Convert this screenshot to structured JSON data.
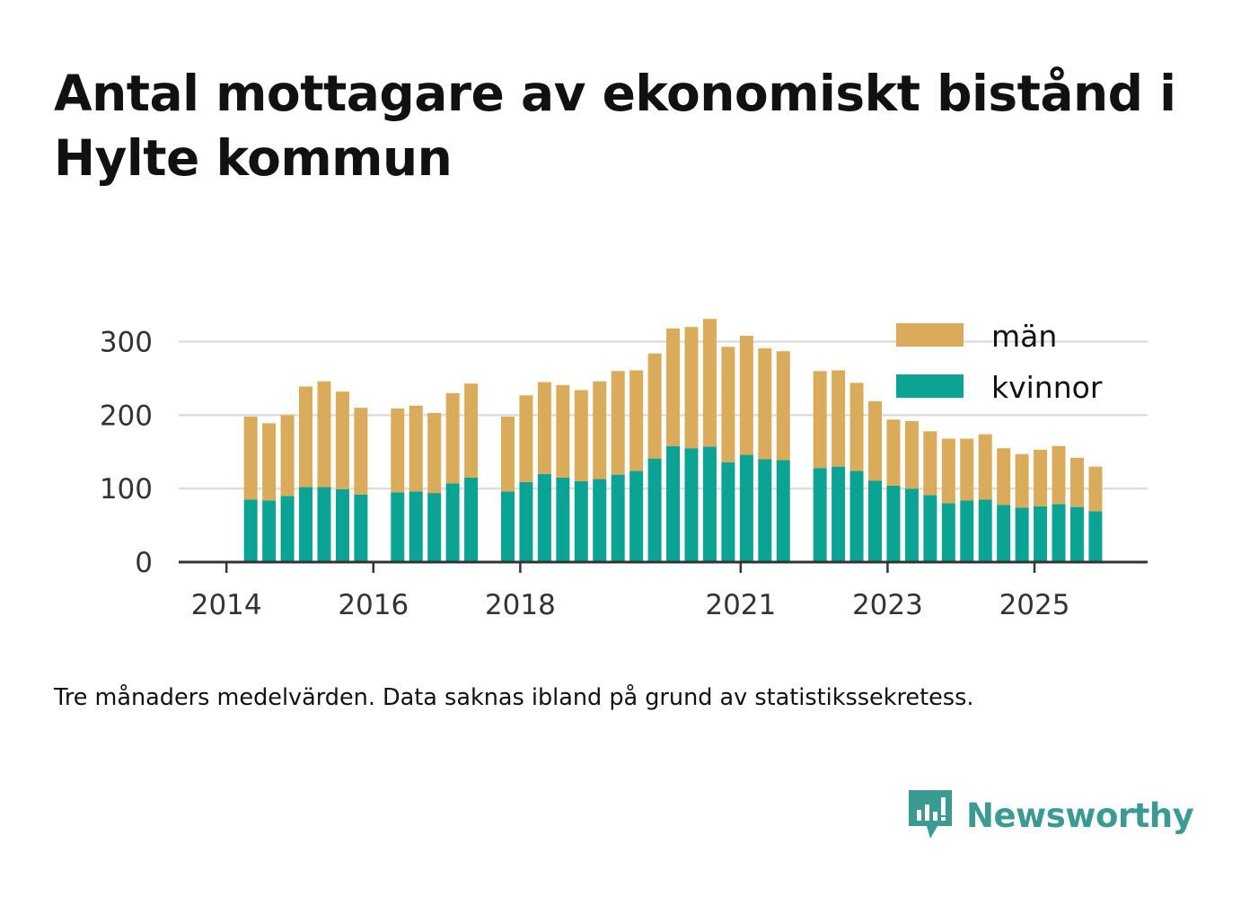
{
  "title": "Antal mottagare av ekonomiskt bistånd i Hylte kommun",
  "caption": "Tre månaders medelvärden. Data saknas ibland på grund av statistikssekretess.",
  "brand": {
    "name": "Newsworthy",
    "icon": "newsworthy-bar-chart-logo-icon",
    "color": "#3b9a92"
  },
  "colors": {
    "man": "#d9ab5b",
    "kvinnor": "#0ba393",
    "grid": "#dddddd",
    "axis": "#333333"
  },
  "chart_data": {
    "type": "bar",
    "stacked": true,
    "title": "Antal mottagare av ekonomiskt bistånd i Hylte kommun",
    "xlabel": "",
    "ylabel": "",
    "ylim": [
      0,
      330
    ],
    "yticks": [
      0,
      100,
      200,
      300
    ],
    "xticks": [
      {
        "label": "2014",
        "t": 2014.0
      },
      {
        "label": "2016",
        "t": 2016.0
      },
      {
        "label": "2018",
        "t": 2018.0
      },
      {
        "label": "2021",
        "t": 2021.0
      },
      {
        "label": "2023",
        "t": 2023.0
      },
      {
        "label": "2025",
        "t": 2025.0
      }
    ],
    "xlim": [
      2013.35,
      2026.54
    ],
    "legend": {
      "position": "top-right",
      "entries": [
        "män",
        "kvinnor"
      ]
    },
    "grid": true,
    "periods": [
      {
        "t": 2014.33,
        "kvinnor": 85,
        "man": 113
      },
      {
        "t": 2014.58,
        "kvinnor": 84,
        "man": 105
      },
      {
        "t": 2014.83,
        "kvinnor": 90,
        "man": 110
      },
      {
        "t": 2015.08,
        "kvinnor": 102,
        "man": 137
      },
      {
        "t": 2015.33,
        "kvinnor": 102,
        "man": 144
      },
      {
        "t": 2015.58,
        "kvinnor": 99,
        "man": 133
      },
      {
        "t": 2015.83,
        "kvinnor": 92,
        "man": 118
      },
      {
        "t": 2016.33,
        "kvinnor": 95,
        "man": 114
      },
      {
        "t": 2016.58,
        "kvinnor": 96,
        "man": 117
      },
      {
        "t": 2016.83,
        "kvinnor": 94,
        "man": 109
      },
      {
        "t": 2017.08,
        "kvinnor": 107,
        "man": 123
      },
      {
        "t": 2017.33,
        "kvinnor": 115,
        "man": 128
      },
      {
        "t": 2017.83,
        "kvinnor": 96,
        "man": 102
      },
      {
        "t": 2018.08,
        "kvinnor": 109,
        "man": 118
      },
      {
        "t": 2018.33,
        "kvinnor": 120,
        "man": 125
      },
      {
        "t": 2018.58,
        "kvinnor": 115,
        "man": 126
      },
      {
        "t": 2018.83,
        "kvinnor": 110,
        "man": 124
      },
      {
        "t": 2019.08,
        "kvinnor": 113,
        "man": 133
      },
      {
        "t": 2019.33,
        "kvinnor": 119,
        "man": 141
      },
      {
        "t": 2019.58,
        "kvinnor": 124,
        "man": 137
      },
      {
        "t": 2019.83,
        "kvinnor": 141,
        "man": 143
      },
      {
        "t": 2020.08,
        "kvinnor": 158,
        "man": 160
      },
      {
        "t": 2020.33,
        "kvinnor": 155,
        "man": 165
      },
      {
        "t": 2020.58,
        "kvinnor": 157,
        "man": 174
      },
      {
        "t": 2020.83,
        "kvinnor": 136,
        "man": 157
      },
      {
        "t": 2021.08,
        "kvinnor": 146,
        "man": 162
      },
      {
        "t": 2021.33,
        "kvinnor": 140,
        "man": 151
      },
      {
        "t": 2021.58,
        "kvinnor": 139,
        "man": 148
      },
      {
        "t": 2022.08,
        "kvinnor": 128,
        "man": 132
      },
      {
        "t": 2022.33,
        "kvinnor": 130,
        "man": 131
      },
      {
        "t": 2022.58,
        "kvinnor": 124,
        "man": 120
      },
      {
        "t": 2022.83,
        "kvinnor": 111,
        "man": 108
      },
      {
        "t": 2023.08,
        "kvinnor": 104,
        "man": 90
      },
      {
        "t": 2023.33,
        "kvinnor": 100,
        "man": 92
      },
      {
        "t": 2023.58,
        "kvinnor": 91,
        "man": 87
      },
      {
        "t": 2023.83,
        "kvinnor": 80,
        "man": 88
      },
      {
        "t": 2024.08,
        "kvinnor": 84,
        "man": 84
      },
      {
        "t": 2024.33,
        "kvinnor": 85,
        "man": 89
      },
      {
        "t": 2024.58,
        "kvinnor": 78,
        "man": 77
      },
      {
        "t": 2024.83,
        "kvinnor": 74,
        "man": 73
      },
      {
        "t": 2025.08,
        "kvinnor": 76,
        "man": 77
      },
      {
        "t": 2025.33,
        "kvinnor": 79,
        "man": 79
      },
      {
        "t": 2025.58,
        "kvinnor": 75,
        "man": 67
      },
      {
        "t": 2025.83,
        "kvinnor": 69,
        "man": 61
      }
    ]
  }
}
